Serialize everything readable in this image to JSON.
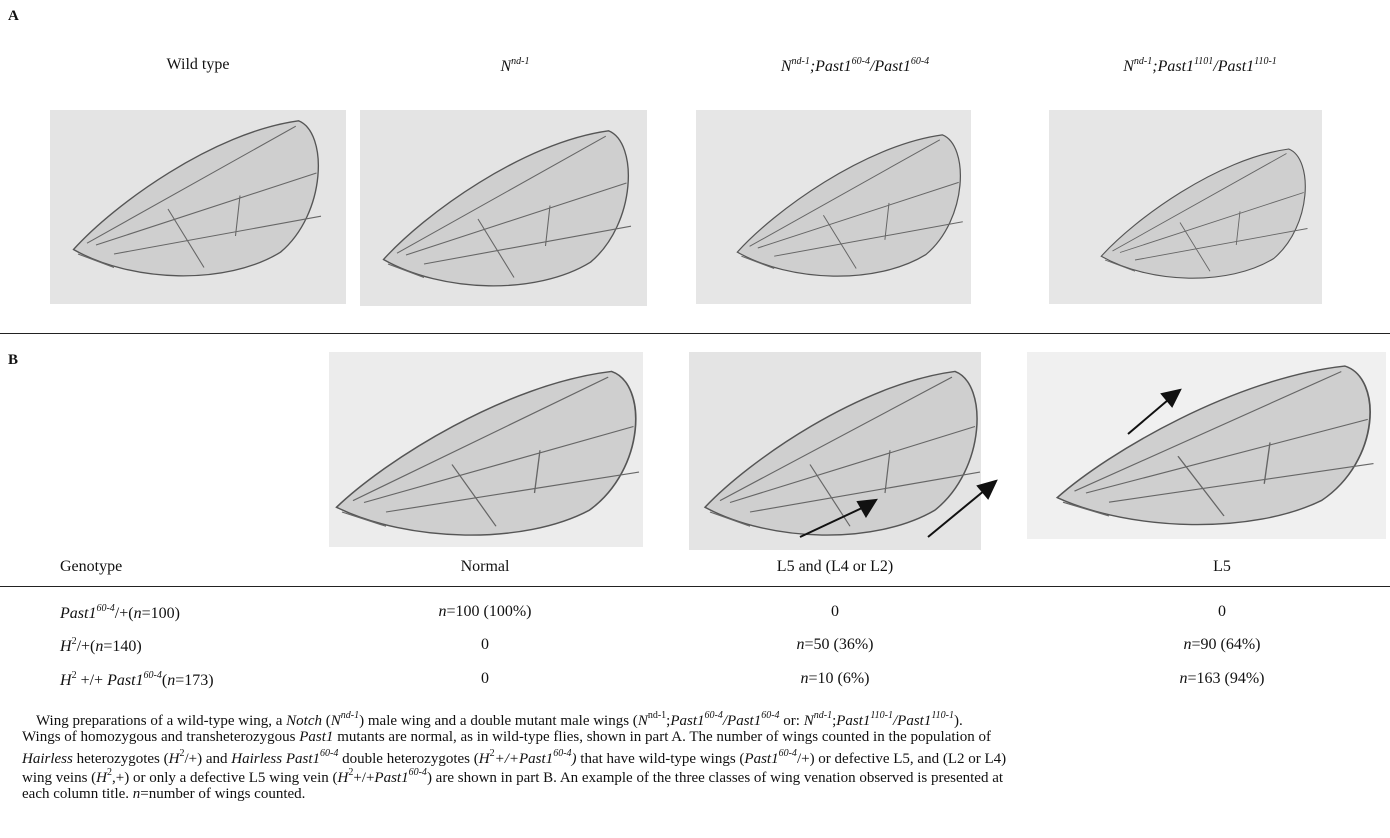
{
  "panel_a": {
    "label": "A",
    "titles": [
      [
        {
          "text": "Wild type",
          "style": "n"
        }
      ],
      [
        {
          "text": "N",
          "style": "i"
        },
        {
          "text": "nd-1",
          "style": "isup"
        }
      ],
      [
        {
          "text": "N",
          "style": "i"
        },
        {
          "text": "nd-1",
          "style": "isup"
        },
        {
          "text": ";Past1",
          "style": "i"
        },
        {
          "text": "60-4",
          "style": "isup"
        },
        {
          "text": "/Past1",
          "style": "i"
        },
        {
          "text": "60-4",
          "style": "isup"
        }
      ],
      [
        {
          "text": "N",
          "style": "i"
        },
        {
          "text": "nd-1",
          "style": "isup"
        },
        {
          "text": ";Past1",
          "style": "i"
        },
        {
          "text": "1101",
          "style": "isup"
        },
        {
          "text": "/Past1",
          "style": "i"
        },
        {
          "text": "110-1",
          "style": "isup"
        }
      ]
    ]
  },
  "panel_b": {
    "label": "B",
    "table": {
      "header": [
        "Genotype",
        "Normal",
        "L5 and (L4 or L2)",
        "L5"
      ],
      "rows": [
        [
          [
            {
              "text": "Past1",
              "style": "i"
            },
            {
              "text": "60-4",
              "style": "isup"
            },
            {
              "text": "/+(",
              "style": "n"
            },
            {
              "text": "n",
              "style": "i"
            },
            {
              "text": "=100)",
              "style": "n"
            }
          ],
          [
            {
              "text": "n",
              "style": "i"
            },
            {
              "text": "=100 (100%)",
              "style": "n"
            }
          ],
          [
            {
              "text": "0",
              "style": "n"
            }
          ],
          [
            {
              "text": "0",
              "style": "n"
            }
          ]
        ],
        [
          [
            {
              "text": "H",
              "style": "i"
            },
            {
              "text": "2",
              "style": "sup"
            },
            {
              "text": "/+(",
              "style": "n"
            },
            {
              "text": "n",
              "style": "i"
            },
            {
              "text": "=140)",
              "style": "n"
            }
          ],
          [
            {
              "text": "0",
              "style": "n"
            }
          ],
          [
            {
              "text": "n",
              "style": "i"
            },
            {
              "text": "=50 (36%)",
              "style": "n"
            }
          ],
          [
            {
              "text": "n",
              "style": "i"
            },
            {
              "text": "=90 (64%)",
              "style": "n"
            }
          ]
        ],
        [
          [
            {
              "text": "H",
              "style": "i"
            },
            {
              "text": "2",
              "style": "sup"
            },
            {
              "text": " +/+ ",
              "style": "n"
            },
            {
              "text": "Past1",
              "style": "i"
            },
            {
              "text": "60-4",
              "style": "isup"
            },
            {
              "text": "(",
              "style": "n"
            },
            {
              "text": "n",
              "style": "i"
            },
            {
              "text": "=173)",
              "style": "n"
            }
          ],
          [
            {
              "text": "0",
              "style": "n"
            }
          ],
          [
            {
              "text": "n",
              "style": "i"
            },
            {
              "text": "=10 (6%)",
              "style": "n"
            }
          ],
          [
            {
              "text": "n",
              "style": "i"
            },
            {
              "text": "=163 (94%)",
              "style": "n"
            }
          ]
        ]
      ]
    }
  },
  "caption": [
    [
      {
        "text": "Wing preparations of a wild-type wing, a ",
        "style": "n"
      },
      {
        "text": "Notch",
        "style": "i"
      },
      {
        "text": " (",
        "style": "n"
      },
      {
        "text": "N",
        "style": "i"
      },
      {
        "text": "nd-1",
        "style": "isup"
      },
      {
        "text": ") male wing and a double mutant male wings (",
        "style": "n"
      },
      {
        "text": "N",
        "style": "i"
      },
      {
        "text": "nd-1",
        "style": "sup"
      },
      {
        "text": ";",
        "style": "n"
      },
      {
        "text": "Past1",
        "style": "i"
      },
      {
        "text": "60-4",
        "style": "isup"
      },
      {
        "text": "/Past1",
        "style": "i"
      },
      {
        "text": "60-4",
        "style": "isup"
      },
      {
        "text": " or: ",
        "style": "n"
      },
      {
        "text": "N",
        "style": "i"
      },
      {
        "text": "nd-1",
        "style": "isup"
      },
      {
        "text": ";",
        "style": "n"
      },
      {
        "text": "Past1",
        "style": "i"
      },
      {
        "text": "110-1",
        "style": "isup"
      },
      {
        "text": "/Past1",
        "style": "i"
      },
      {
        "text": "110-1",
        "style": "isup"
      },
      {
        "text": ").",
        "style": "n"
      }
    ],
    [
      {
        "text": "Wings of homozygous and transheterozygous ",
        "style": "n"
      },
      {
        "text": "Past1",
        "style": "i"
      },
      {
        "text": " mutants are normal, as in wild-type flies, shown in part A. The number of wings counted in the population of",
        "style": "n"
      }
    ],
    [
      {
        "text": "Hairless",
        "style": "i"
      },
      {
        "text": " heterozygotes (",
        "style": "n"
      },
      {
        "text": "H",
        "style": "i"
      },
      {
        "text": "2",
        "style": "sup"
      },
      {
        "text": "/+) and ",
        "style": "n"
      },
      {
        "text": "Hairless Past1",
        "style": "i"
      },
      {
        "text": "60-4",
        "style": "isup"
      },
      {
        "text": " double heterozygotes (",
        "style": "n"
      },
      {
        "text": "H",
        "style": "i"
      },
      {
        "text": "2",
        "style": "sup"
      },
      {
        "text": "+/+Past1",
        "style": "i"
      },
      {
        "text": "60-4",
        "style": "isup"
      },
      {
        "text": ")",
        "style": "i"
      },
      {
        "text": " that have wild-type wings (",
        "style": "n"
      },
      {
        "text": "Past1",
        "style": "i"
      },
      {
        "text": "60-4",
        "style": "isup"
      },
      {
        "text": "/+) or defective L5, and (L2 or L4)",
        "style": "n"
      }
    ],
    [
      {
        "text": "wing veins (",
        "style": "n"
      },
      {
        "text": "H",
        "style": "i"
      },
      {
        "text": "2",
        "style": "sup"
      },
      {
        "text": ",+) or only a defective L5 wing vein (",
        "style": "n"
      },
      {
        "text": "H",
        "style": "i"
      },
      {
        "text": "2",
        "style": "sup"
      },
      {
        "text": "+/+",
        "style": "n"
      },
      {
        "text": "Past1",
        "style": "i"
      },
      {
        "text": "60-4",
        "style": "isup"
      },
      {
        "text": ") are shown in part B. An example of the three classes of wing venation observed is presented at",
        "style": "n"
      }
    ],
    [
      {
        "text": "each column title.  ",
        "style": "n"
      },
      {
        "text": "n",
        "style": "i"
      },
      {
        "text": "=number of wings counted.",
        "style": "n"
      }
    ]
  ]
}
